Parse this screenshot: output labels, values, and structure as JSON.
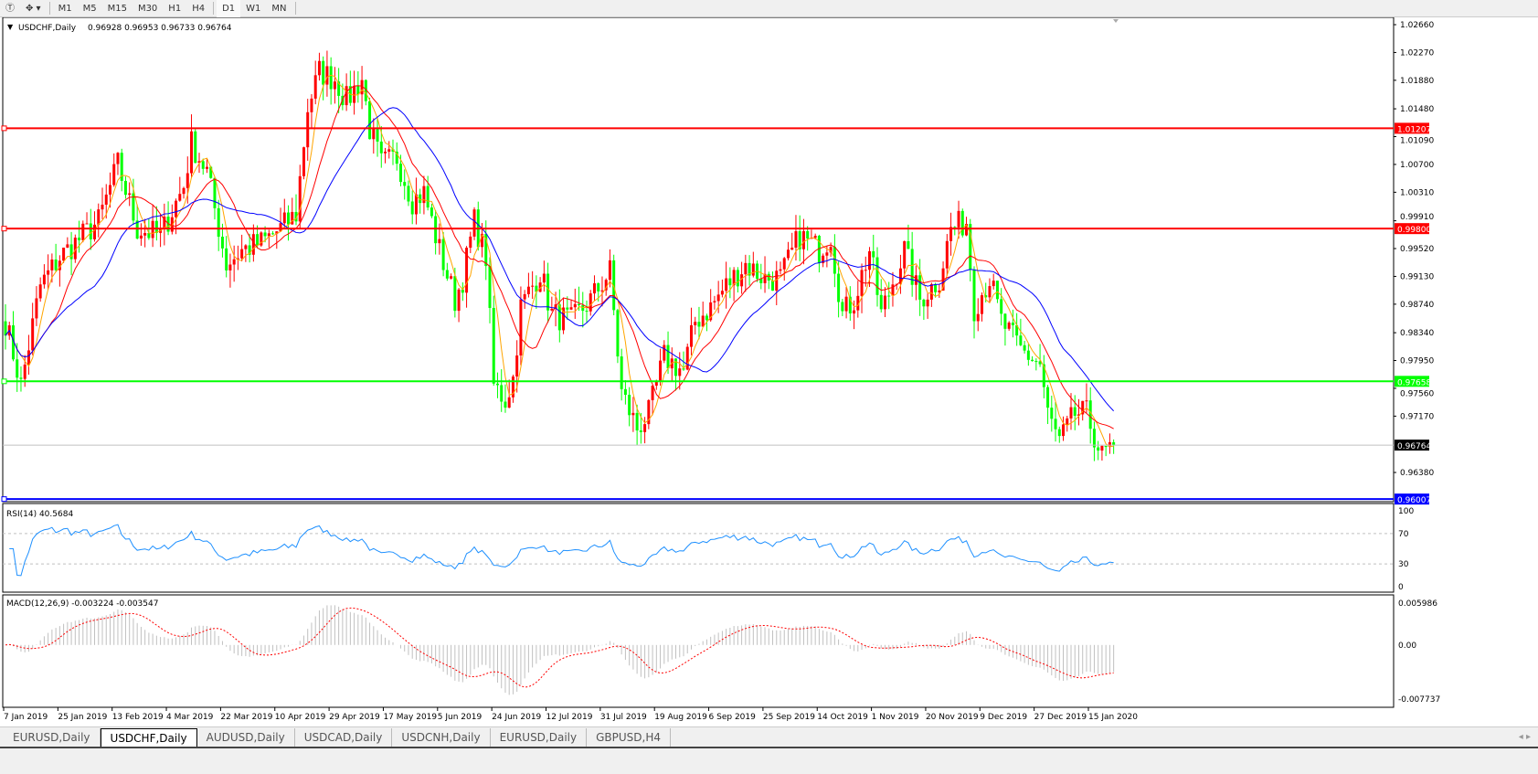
{
  "toolbar": {
    "icons": [
      "text-tool-icon",
      "objects-menu-icon",
      "dropdown-arrow-icon"
    ],
    "timeframes": [
      "M1",
      "M5",
      "M15",
      "M30",
      "H1",
      "H4",
      "D1",
      "W1",
      "MN"
    ],
    "active_timeframe": "D1"
  },
  "chart_header": {
    "symbol": "USDCHF,Daily",
    "ohlc": "0.96928 0.96953 0.96733 0.96764"
  },
  "price_axis": {
    "ticks": [
      "1.02660",
      "1.02270",
      "1.01880",
      "1.01480",
      "1.01090",
      "1.00700",
      "1.00310",
      "0.99910",
      "0.99520",
      "0.99130",
      "0.98740",
      "0.98340",
      "0.97950",
      "0.97560",
      "0.97170",
      "0.96380"
    ],
    "current_price": "0.96764"
  },
  "hlines": [
    {
      "label": "1.01207",
      "price": 1.01207,
      "color": "#ff0000"
    },
    {
      "label": "0.99800",
      "price": 0.998,
      "color": "#ff0000"
    },
    {
      "label": "0.97658",
      "price": 0.97658,
      "color": "#00ff00"
    },
    {
      "label": "0.96007",
      "price": 0.96007,
      "color": "#0000ff"
    }
  ],
  "rsi": {
    "label": "RSI(14) 40.5684",
    "ticks": [
      "100",
      "70",
      "30",
      "0"
    ]
  },
  "macd": {
    "label": "MACD(12,26,9) -0.003224 -0.003547",
    "ticks": [
      "0.005986",
      "0.00",
      "-0.007737"
    ]
  },
  "dates": [
    "7 Jan 2019",
    "25 Jan 2019",
    "13 Feb 2019",
    "4 Mar 2019",
    "22 Mar 2019",
    "10 Apr 2019",
    "29 Apr 2019",
    "17 May 2019",
    "5 Jun 2019",
    "24 Jun 2019",
    "12 Jul 2019",
    "31 Jul 2019",
    "19 Aug 2019",
    "6 Sep 2019",
    "25 Sep 2019",
    "14 Oct 2019",
    "1 Nov 2019",
    "20 Nov 2019",
    "9 Dec 2019",
    "27 Dec 2019",
    "15 Jan 2020"
  ],
  "tabs": [
    "EURUSD,Daily",
    "USDCHF,Daily",
    "AUDUSD,Daily",
    "USDCAD,Daily",
    "USDCNH,Daily",
    "EURUSD,Daily",
    "GBPUSD,H4"
  ],
  "active_tab": 1,
  "colors": {
    "bull_candle": "#ff0000",
    "bear_candle": "#00ff00",
    "ma_fast": "#ffa500",
    "ma_mid": "#ff0000",
    "ma_slow": "#0000ff",
    "rsi": "#1e90ff",
    "macd_hist": "#c0c0c0",
    "macd_signal": "#ff0000"
  },
  "chart_data": {
    "type": "candlestick",
    "symbol": "USDCHF",
    "timeframe": "Daily",
    "ylim": [
      0.96007,
      1.0266
    ],
    "close_waypoints": [
      [
        0,
        0.985
      ],
      [
        4,
        0.976
      ],
      [
        9,
        0.99
      ],
      [
        14,
        0.994
      ],
      [
        24,
        0.999
      ],
      [
        29,
        1.007
      ],
      [
        34,
        0.998
      ],
      [
        40,
        0.997
      ],
      [
        46,
        1.004
      ],
      [
        48,
        1.01
      ],
      [
        52,
        1.006
      ],
      [
        57,
        0.993
      ],
      [
        61,
        0.995
      ],
      [
        66,
        0.996
      ],
      [
        71,
        0.998
      ],
      [
        75,
        1.0
      ],
      [
        78,
        1.015
      ],
      [
        81,
        1.02
      ],
      [
        85,
        1.019
      ],
      [
        88,
        1.016
      ],
      [
        92,
        1.019
      ],
      [
        94,
        1.012
      ],
      [
        97,
        1.007
      ],
      [
        101,
        1.008
      ],
      [
        105,
        1.002
      ],
      [
        108,
        1.003
      ],
      [
        112,
        0.995
      ],
      [
        116,
        0.988
      ],
      [
        118,
        0.991
      ],
      [
        121,
        0.999
      ],
      [
        124,
        0.994
      ],
      [
        126,
        0.976
      ],
      [
        129,
        0.974
      ],
      [
        131,
        0.977
      ],
      [
        133,
        0.987
      ],
      [
        138,
        0.992
      ],
      [
        141,
        0.986
      ],
      [
        146,
        0.985
      ],
      [
        151,
        0.988
      ],
      [
        156,
        0.992
      ],
      [
        159,
        0.975
      ],
      [
        163,
        0.97
      ],
      [
        166,
        0.972
      ],
      [
        170,
        0.98
      ],
      [
        175,
        0.978
      ],
      [
        178,
        0.985
      ],
      [
        182,
        0.987
      ],
      [
        186,
        0.99
      ],
      [
        191,
        0.993
      ],
      [
        196,
        0.991
      ],
      [
        200,
        0.991
      ],
      [
        205,
        0.997
      ],
      [
        210,
        0.995
      ],
      [
        213,
        0.997
      ],
      [
        216,
        0.986
      ],
      [
        219,
        0.988
      ],
      [
        223,
        0.995
      ],
      [
        226,
        0.986
      ],
      [
        232,
        0.995
      ],
      [
        236,
        0.988
      ],
      [
        241,
        0.991
      ],
      [
        244,
        0.998
      ],
      [
        248,
        0.999
      ],
      [
        250,
        0.987
      ],
      [
        254,
        0.991
      ],
      [
        257,
        0.985
      ],
      [
        262,
        0.981
      ],
      [
        267,
        0.979
      ],
      [
        269,
        0.972
      ],
      [
        272,
        0.968
      ],
      [
        276,
        0.972
      ],
      [
        279,
        0.972
      ],
      [
        283,
        0.966
      ],
      [
        286,
        0.96764
      ]
    ]
  }
}
